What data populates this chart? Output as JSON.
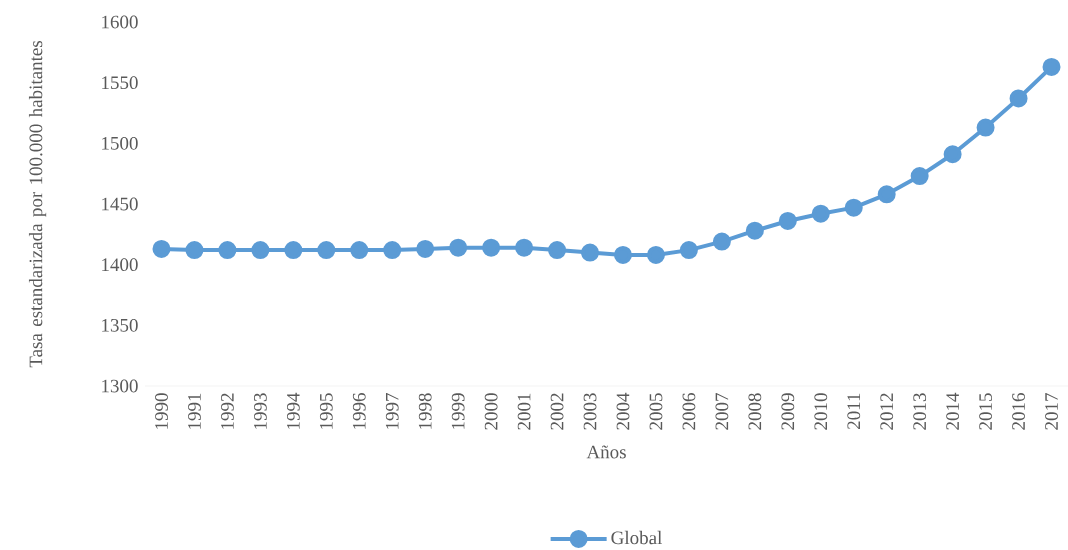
{
  "chart_data": {
    "type": "line",
    "xlabel": "Años",
    "ylabel": "Tasa estandarizada por 100.000 habitantes",
    "categories": [
      "1990",
      "1991",
      "1992",
      "1993",
      "1994",
      "1995",
      "1996",
      "1997",
      "1998",
      "1999",
      "2000",
      "2001",
      "2002",
      "2003",
      "2004",
      "2005",
      "2006",
      "2007",
      "2008",
      "2009",
      "2010",
      "2011",
      "2012",
      "2013",
      "2014",
      "2015",
      "2016",
      "2017"
    ],
    "series": [
      {
        "name": "Global",
        "color": "#5b9bd5",
        "values": [
          1413,
          1412,
          1412,
          1412,
          1412,
          1412,
          1412,
          1412,
          1413,
          1414,
          1414,
          1414,
          1412,
          1410,
          1408,
          1408,
          1412,
          1419,
          1428,
          1436,
          1442,
          1447,
          1458,
          1473,
          1491,
          1513,
          1537,
          1563
        ]
      }
    ],
    "ylim": [
      1300,
      1600
    ],
    "yticks": [
      1300,
      1350,
      1400,
      1450,
      1500,
      1550,
      1600
    ],
    "grid": false,
    "legend": "bottom",
    "marker": "circle",
    "line_style": "solid"
  }
}
